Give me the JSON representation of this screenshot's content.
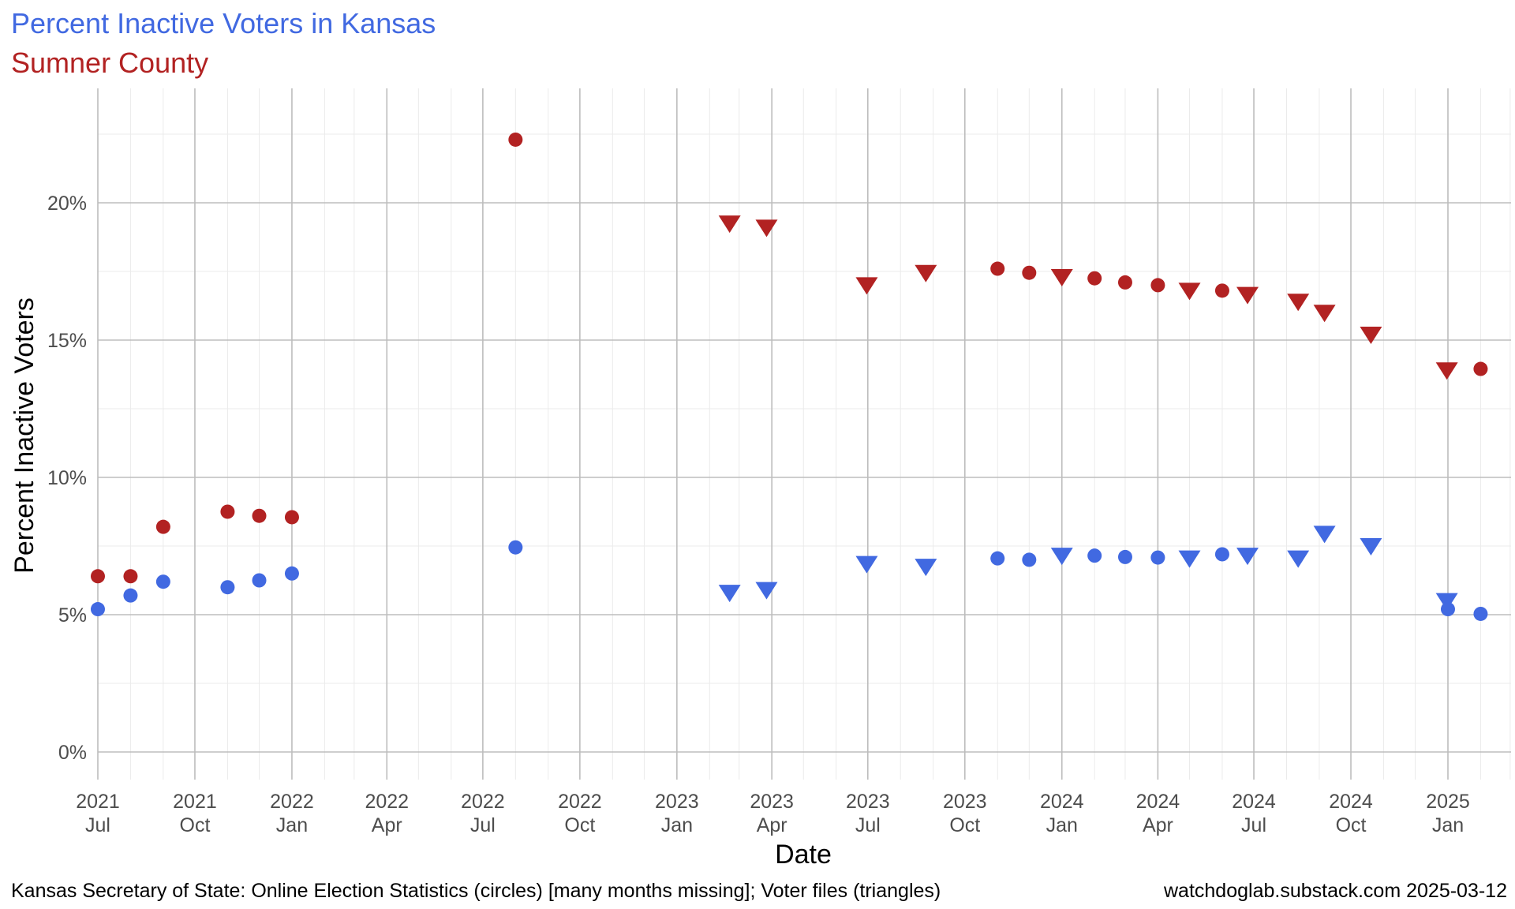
{
  "chart_data": {
    "type": "scatter",
    "title": "Percent Inactive Voters in Kansas",
    "subtitle": "Sumner County",
    "xlabel": "Date",
    "ylabel": "Percent Inactive Voters",
    "caption_left": "Kansas Secretary of State: Online Election Statistics (circles) [many months missing]; Voter files (triangles)",
    "caption_right": "watchdoglab.substack.com 2025-03-12",
    "colors": {
      "title": "#4169E1",
      "subtitle": "#B22222",
      "kansas": "#4169E1",
      "sumner": "#B22222"
    },
    "grid": true,
    "xlim": [
      "2021-07-01",
      "2025-04-15"
    ],
    "ylim": [
      -0.5,
      24.5
    ],
    "x_ticks": [
      {
        "date": "2021-07-01",
        "year": "2021",
        "month": "Jul"
      },
      {
        "date": "2021-10-01",
        "year": "2021",
        "month": "Oct"
      },
      {
        "date": "2022-01-01",
        "year": "2022",
        "month": "Jan"
      },
      {
        "date": "2022-04-01",
        "year": "2022",
        "month": "Apr"
      },
      {
        "date": "2022-07-01",
        "year": "2022",
        "month": "Jul"
      },
      {
        "date": "2022-10-01",
        "year": "2022",
        "month": "Oct"
      },
      {
        "date": "2023-01-01",
        "year": "2023",
        "month": "Jan"
      },
      {
        "date": "2023-04-01",
        "year": "2023",
        "month": "Apr"
      },
      {
        "date": "2023-07-01",
        "year": "2023",
        "month": "Jul"
      },
      {
        "date": "2023-10-01",
        "year": "2023",
        "month": "Oct"
      },
      {
        "date": "2024-01-01",
        "year": "2024",
        "month": "Jan"
      },
      {
        "date": "2024-04-01",
        "year": "2024",
        "month": "Apr"
      },
      {
        "date": "2024-07-01",
        "year": "2024",
        "month": "Jul"
      },
      {
        "date": "2024-10-01",
        "year": "2024",
        "month": "Oct"
      },
      {
        "date": "2025-01-01",
        "year": "2025",
        "month": "Jan"
      }
    ],
    "y_ticks": [
      {
        "value": 0,
        "label": "0%"
      },
      {
        "value": 5,
        "label": "5%"
      },
      {
        "value": 10,
        "label": "10%"
      },
      {
        "value": 15,
        "label": "15%"
      },
      {
        "value": 20,
        "label": "20%"
      }
    ],
    "series": [
      {
        "color": "#4169E1",
        "circles": [
          {
            "x": "2021-07-01",
            "y": 5.2
          },
          {
            "x": "2021-08-01",
            "y": 5.7
          },
          {
            "x": "2021-09-01",
            "y": 6.2
          },
          {
            "x": "2021-11-01",
            "y": 6.0
          },
          {
            "x": "2021-12-01",
            "y": 6.25
          },
          {
            "x": "2022-01-01",
            "y": 6.5
          },
          {
            "x": "2022-08-01",
            "y": 7.45
          },
          {
            "x": "2023-11-01",
            "y": 7.05
          },
          {
            "x": "2023-12-01",
            "y": 7.0
          },
          {
            "x": "2024-02-01",
            "y": 7.15
          },
          {
            "x": "2024-03-01",
            "y": 7.1
          },
          {
            "x": "2024-04-01",
            "y": 7.08
          },
          {
            "x": "2024-06-01",
            "y": 7.2
          },
          {
            "x": "2025-01-01",
            "y": 5.2
          },
          {
            "x": "2025-02-01",
            "y": 5.03
          }
        ],
        "triangles": [
          {
            "x": "2023-02-20",
            "y": 5.8
          },
          {
            "x": "2023-03-27",
            "y": 5.9
          },
          {
            "x": "2023-06-30",
            "y": 6.85
          },
          {
            "x": "2023-08-25",
            "y": 6.75
          },
          {
            "x": "2024-01-01",
            "y": 7.15
          },
          {
            "x": "2024-05-01",
            "y": 7.05
          },
          {
            "x": "2024-06-25",
            "y": 7.15
          },
          {
            "x": "2024-08-12",
            "y": 7.05
          },
          {
            "x": "2024-09-06",
            "y": 7.95
          },
          {
            "x": "2024-10-20",
            "y": 7.5
          },
          {
            "x": "2024-12-31",
            "y": 5.5
          }
        ]
      },
      {
        "color": "#B22222",
        "circles": [
          {
            "x": "2021-07-01",
            "y": 6.4
          },
          {
            "x": "2021-08-01",
            "y": 6.4
          },
          {
            "x": "2021-09-01",
            "y": 8.2
          },
          {
            "x": "2021-11-01",
            "y": 8.75
          },
          {
            "x": "2021-12-01",
            "y": 8.6
          },
          {
            "x": "2022-01-01",
            "y": 8.55
          },
          {
            "x": "2022-08-01",
            "y": 22.3
          },
          {
            "x": "2023-11-01",
            "y": 17.6
          },
          {
            "x": "2023-12-01",
            "y": 17.45
          },
          {
            "x": "2024-02-01",
            "y": 17.25
          },
          {
            "x": "2024-03-01",
            "y": 17.1
          },
          {
            "x": "2024-04-01",
            "y": 17.0
          },
          {
            "x": "2024-06-01",
            "y": 16.8
          },
          {
            "x": "2025-02-01",
            "y": 13.95
          }
        ],
        "triangles": [
          {
            "x": "2023-02-20",
            "y": 19.25
          },
          {
            "x": "2023-03-27",
            "y": 19.1
          },
          {
            "x": "2023-06-30",
            "y": 17.0
          },
          {
            "x": "2023-08-25",
            "y": 17.45
          },
          {
            "x": "2024-01-01",
            "y": 17.3
          },
          {
            "x": "2024-05-01",
            "y": 16.8
          },
          {
            "x": "2024-06-25",
            "y": 16.65
          },
          {
            "x": "2024-08-12",
            "y": 16.4
          },
          {
            "x": "2024-09-06",
            "y": 16.0
          },
          {
            "x": "2024-10-20",
            "y": 15.2
          },
          {
            "x": "2024-12-31",
            "y": 13.9
          }
        ]
      }
    ]
  }
}
